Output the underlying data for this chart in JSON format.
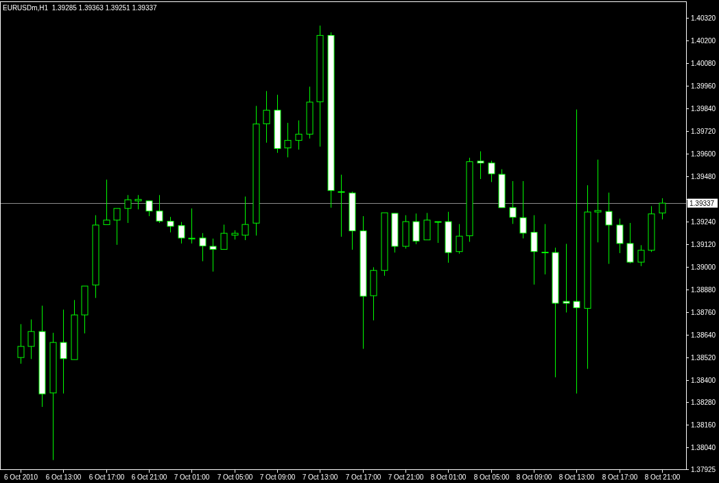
{
  "chart_data": {
    "type": "candlestick",
    "title": "EURUSDm,H1  1.39285 1.39363 1.39251 1.39337",
    "color": "#00ff00",
    "x": [
      "2010-10-06T09:00",
      "2010-10-06T10:00",
      "2010-10-06T11:00",
      "2010-10-06T12:00",
      "2010-10-06T13:00",
      "2010-10-06T14:00",
      "2010-10-06T15:00",
      "2010-10-06T16:00",
      "2010-10-06T17:00",
      "2010-10-06T18:00",
      "2010-10-06T19:00",
      "2010-10-06T20:00",
      "2010-10-06T21:00",
      "2010-10-06T22:00",
      "2010-10-06T23:00",
      "2010-10-07T00:00",
      "2010-10-07T01:00",
      "2010-10-07T02:00",
      "2010-10-07T03:00",
      "2010-10-07T04:00",
      "2010-10-07T05:00",
      "2010-10-07T06:00",
      "2010-10-07T07:00",
      "2010-10-07T08:00",
      "2010-10-07T09:00",
      "2010-10-07T10:00",
      "2010-10-07T11:00",
      "2010-10-07T12:00",
      "2010-10-07T13:00",
      "2010-10-07T14:00",
      "2010-10-07T15:00",
      "2010-10-07T16:00",
      "2010-10-07T17:00",
      "2010-10-07T18:00",
      "2010-10-07T19:00",
      "2010-10-07T20:00",
      "2010-10-07T21:00",
      "2010-10-07T22:00",
      "2010-10-07T23:00",
      "2010-10-08T00:00",
      "2010-10-08T01:00",
      "2010-10-08T02:00",
      "2010-10-08T03:00",
      "2010-10-08T04:00",
      "2010-10-08T05:00",
      "2010-10-08T06:00",
      "2010-10-08T07:00",
      "2010-10-08T08:00",
      "2010-10-08T09:00",
      "2010-10-08T10:00",
      "2010-10-08T11:00",
      "2010-10-08T12:00",
      "2010-10-08T13:00",
      "2010-10-08T14:00",
      "2010-10-08T15:00",
      "2010-10-08T16:00",
      "2010-10-08T17:00",
      "2010-10-08T18:00",
      "2010-10-08T19:00",
      "2010-10-08T20:00",
      "2010-10-08T21:00"
    ],
    "xlim": [
      "2010-10-06T07:05",
      "2010-10-08T23:15"
    ],
    "xticks": [
      {
        "value": "2010-10-06T09:00",
        "label": "6 Oct 2010"
      },
      {
        "value": "2010-10-06T13:00",
        "label": "6 Oct 13:00"
      },
      {
        "value": "2010-10-06T17:00",
        "label": "6 Oct 17:00"
      },
      {
        "value": "2010-10-06T21:00",
        "label": "6 Oct 21:00"
      },
      {
        "value": "2010-10-07T01:00",
        "label": "7 Oct 01:00"
      },
      {
        "value": "2010-10-07T05:00",
        "label": "7 Oct 05:00"
      },
      {
        "value": "2010-10-07T09:00",
        "label": "7 Oct 09:00"
      },
      {
        "value": "2010-10-07T13:00",
        "label": "7 Oct 13:00"
      },
      {
        "value": "2010-10-07T17:00",
        "label": "7 Oct 17:00"
      },
      {
        "value": "2010-10-07T21:00",
        "label": "7 Oct 21:00"
      },
      {
        "value": "2010-10-08T01:00",
        "label": "8 Oct 01:00"
      },
      {
        "value": "2010-10-08T05:00",
        "label": "8 Oct 05:00"
      },
      {
        "value": "2010-10-08T09:00",
        "label": "8 Oct 09:00"
      },
      {
        "value": "2010-10-08T13:00",
        "label": "8 Oct 13:00"
      },
      {
        "value": "2010-10-08T17:00",
        "label": "8 Oct 17:00"
      },
      {
        "value": "2010-10-08T21:00",
        "label": "8 Oct 21:00"
      }
    ],
    "ohlc": [
      [
        1.38518,
        1.38695,
        1.38485,
        1.38577
      ],
      [
        1.38577,
        1.3872,
        1.3851,
        1.38656
      ],
      [
        1.38656,
        1.38793,
        1.38256,
        1.38325
      ],
      [
        1.3833,
        1.38649,
        1.37974,
        1.38598
      ],
      [
        1.38598,
        1.38772,
        1.38327,
        1.38512
      ],
      [
        1.38507,
        1.38823,
        1.38507,
        1.38744
      ],
      [
        1.38744,
        1.38897,
        1.38646,
        1.38897
      ],
      [
        1.38903,
        1.39273,
        1.38834,
        1.39221
      ],
      [
        1.39223,
        1.39462,
        1.39223,
        1.39247
      ],
      [
        1.39247,
        1.39309,
        1.39116,
        1.39309
      ],
      [
        1.39309,
        1.3938,
        1.39232,
        1.39355
      ],
      [
        1.39349,
        1.3938,
        1.39304,
        1.39357
      ],
      [
        1.39349,
        1.39349,
        1.39268,
        1.39295
      ],
      [
        1.39295,
        1.3938,
        1.39232,
        1.39242
      ],
      [
        1.39241,
        1.39264,
        1.39182,
        1.39214
      ],
      [
        1.39218,
        1.39237,
        1.39123,
        1.39152
      ],
      [
        1.39151,
        1.39309,
        1.39123,
        1.39151
      ],
      [
        1.39152,
        1.39178,
        1.39029,
        1.3911
      ],
      [
        1.39108,
        1.39149,
        1.38974,
        1.39092
      ],
      [
        1.39092,
        1.39223,
        1.39092,
        1.39177
      ],
      [
        1.39167,
        1.39193,
        1.39144,
        1.39177
      ],
      [
        1.39167,
        1.39372,
        1.39141,
        1.39224
      ],
      [
        1.39231,
        1.39853,
        1.39165,
        1.39757
      ],
      [
        1.39758,
        1.39932,
        1.39658,
        1.3983
      ],
      [
        1.3983,
        1.39912,
        1.39604,
        1.39627
      ],
      [
        1.3963,
        1.39763,
        1.3958,
        1.3967
      ],
      [
        1.3967,
        1.39776,
        1.39621,
        1.39703
      ],
      [
        1.39703,
        1.39955,
        1.3968,
        1.39873
      ],
      [
        1.39875,
        1.40279,
        1.39637,
        1.40227
      ],
      [
        1.40227,
        1.40243,
        1.39313,
        1.39404
      ],
      [
        1.39398,
        1.39488,
        1.39159,
        1.39398
      ],
      [
        1.39391,
        1.39398,
        1.3909,
        1.3919
      ],
      [
        1.3919,
        1.39268,
        1.38564,
        1.38843
      ],
      [
        1.38846,
        1.38997,
        1.38715,
        1.3898
      ],
      [
        1.3898,
        1.39286,
        1.38952,
        1.39286
      ],
      [
        1.39283,
        1.39283,
        1.39075,
        1.39108
      ],
      [
        1.39108,
        1.39273,
        1.39096,
        1.39239
      ],
      [
        1.39239,
        1.39282,
        1.39119,
        1.39136
      ],
      [
        1.39142,
        1.39285,
        1.39142,
        1.39247
      ],
      [
        1.39239,
        1.39239,
        1.39126,
        1.39239
      ],
      [
        1.39239,
        1.39291,
        1.39021,
        1.39075
      ],
      [
        1.3908,
        1.39226,
        1.39069,
        1.39162
      ],
      [
        1.39164,
        1.39578,
        1.39132,
        1.39557
      ],
      [
        1.3956,
        1.39612,
        1.39465,
        1.3955
      ],
      [
        1.3955,
        1.39562,
        1.39449,
        1.39493
      ],
      [
        1.3949,
        1.39517,
        1.39313,
        1.39313
      ],
      [
        1.39313,
        1.39454,
        1.39227,
        1.39262
      ],
      [
        1.3926,
        1.39454,
        1.3915,
        1.39178
      ],
      [
        1.39182,
        1.39273,
        1.38905,
        1.3908
      ],
      [
        1.39077,
        1.39226,
        1.38959,
        1.39077
      ],
      [
        1.39075,
        1.39101,
        1.38413,
        1.38806
      ],
      [
        1.38816,
        1.39121,
        1.38757,
        1.38806
      ],
      [
        1.38816,
        1.39834,
        1.38327,
        1.38782
      ],
      [
        1.38779,
        1.39432,
        1.38458,
        1.3929
      ],
      [
        1.3929,
        1.39568,
        1.39129,
        1.39298
      ],
      [
        1.39293,
        1.39393,
        1.39015,
        1.39221
      ],
      [
        1.39221,
        1.39255,
        1.39072,
        1.39123
      ],
      [
        1.39123,
        1.39232,
        1.39018,
        1.39024
      ],
      [
        1.39024,
        1.39114,
        1.39003,
        1.39087
      ],
      [
        1.39087,
        1.39321,
        1.39078,
        1.3928
      ],
      [
        1.39285,
        1.39363,
        1.39251,
        1.39337
      ]
    ],
    "ylim": [
      1.37925,
      1.40404
    ],
    "yticks": [
      {
        "value": 1.4032,
        "label": "1.40320"
      },
      {
        "value": 1.402,
        "label": "1.40200"
      },
      {
        "value": 1.4008,
        "label": "1.40080"
      },
      {
        "value": 1.3996,
        "label": "1.39960"
      },
      {
        "value": 1.3984,
        "label": "1.39840"
      },
      {
        "value": 1.3972,
        "label": "1.39720"
      },
      {
        "value": 1.396,
        "label": "1.39600"
      },
      {
        "value": 1.3948,
        "label": "1.39480"
      },
      {
        "value": 1.3936,
        "label": null
      },
      {
        "value": 1.3924,
        "label": "1.39240"
      },
      {
        "value": 1.3912,
        "label": "1.39120"
      },
      {
        "value": 1.39,
        "label": "1.39000"
      },
      {
        "value": 1.3888,
        "label": "1.38880"
      },
      {
        "value": 1.3876,
        "label": "1.38760"
      },
      {
        "value": 1.3864,
        "label": "1.38640"
      },
      {
        "value": 1.3852,
        "label": "1.38520"
      },
      {
        "value": 1.384,
        "label": "1.38400"
      },
      {
        "value": 1.3828,
        "label": "1.38280"
      },
      {
        "value": 1.3816,
        "label": "1.38160"
      },
      {
        "value": 1.3804,
        "label": "1.38040"
      },
      {
        "value": 1.37925,
        "label": "1.37925"
      }
    ],
    "ref_lines": [
      {
        "axis": "y",
        "value": 1.39337,
        "label": "1.39337",
        "color": "#8c8c8c"
      }
    ],
    "grid": false
  }
}
